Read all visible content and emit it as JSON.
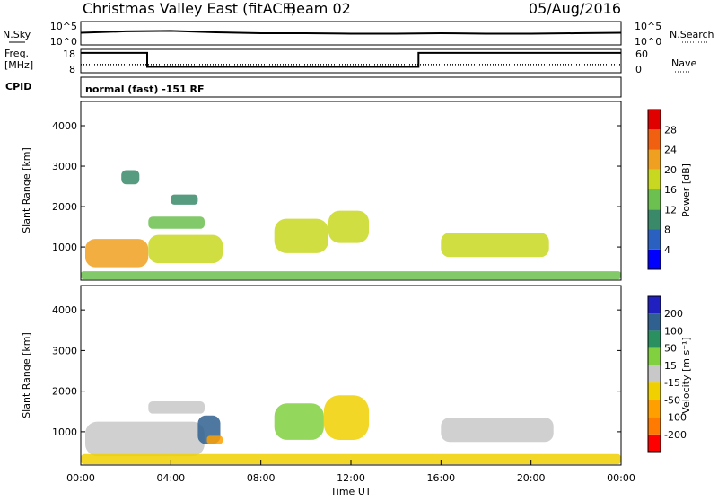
{
  "header": {
    "station": "Christmas Valley East (fitACF)",
    "beam": "Beam 02",
    "date": "05/Aug/2016"
  },
  "panels": {
    "nsky": {
      "label": "N.Sky",
      "left_ticks": [
        "10^5",
        "10^0"
      ],
      "right_ticks": [
        "10^5",
        "10^0"
      ],
      "right_label": "N.Search"
    },
    "freq": {
      "label_line1": "Freq.",
      "label_line2": "[MHz]",
      "left_ticks": [
        "18",
        "8"
      ],
      "right_ticks": [
        "60",
        "0"
      ],
      "right_label": "Nave"
    },
    "cpid": {
      "label": "CPID",
      "value": "normal (fast) -151 RF"
    }
  },
  "axes": {
    "x_ticks": [
      "00:00",
      "04:00",
      "08:00",
      "12:00",
      "16:00",
      "20:00",
      "00:00"
    ],
    "x_label": "Time UT",
    "y_label": "Slant Range [km]",
    "y_ticks": [
      "1000",
      "2000",
      "3000",
      "4000"
    ]
  },
  "colorbars": {
    "power": {
      "label": "Power [dB]",
      "ticks": [
        "4",
        "8",
        "12",
        "16",
        "20",
        "24",
        "28"
      ],
      "colors": [
        "#0000ff",
        "#2a60c0",
        "#3a8a6a",
        "#6cc050",
        "#c8d820",
        "#f0a020",
        "#f06010",
        "#e00000"
      ]
    },
    "velocity": {
      "label": "Velocity [m s⁻¹]",
      "ticks": [
        "-200",
        "-100",
        "-50",
        "-15",
        "15",
        "50",
        "100",
        "200"
      ],
      "colors": [
        "#ff0000",
        "#ff7a00",
        "#ffa000",
        "#f0d000",
        "#c8c8c8",
        "#80d040",
        "#2a9060",
        "#306090",
        "#2020c0"
      ]
    }
  },
  "chart_data": [
    {
      "type": "line",
      "title": "N.Sky / N.Search",
      "x": [
        0,
        2,
        4,
        6,
        8,
        10,
        12,
        14,
        16,
        18,
        20,
        22,
        24
      ],
      "series": [
        {
          "values": [
            2.6,
            2.9,
            3.0,
            2.7,
            2.5,
            2.5,
            2.4,
            2.4,
            2.5,
            2.4,
            2.4,
            2.5,
            2.6
          ]
        }
      ],
      "xlim": [
        0,
        24
      ]
    },
    {
      "type": "line",
      "title": "Frequency / Nave",
      "x": [
        0,
        2.95,
        2.95,
        15,
        15,
        24
      ],
      "series": [
        {
          "name": "Freq. [MHz]",
          "values": [
            16.5,
            16.5,
            10.5,
            10.5,
            16.5,
            16.5
          ]
        },
        {
          "name": "Nave",
          "values": [
            21,
            21,
            21,
            21,
            21,
            21
          ]
        }
      ],
      "xlim": [
        0,
        24
      ],
      "ylim": [
        8,
        18
      ]
    },
    {
      "type": "heatmap",
      "title": "Power [dB]",
      "xlabel": "Time UT",
      "ylabel": "Slant Range [km]",
      "xlim": [
        0,
        24
      ],
      "ylim": [
        180,
        4600
      ],
      "regions": [
        {
          "t": [
            0.2,
            3.0
          ],
          "r": [
            500,
            1200
          ],
          "level": 20
        },
        {
          "t": [
            3.0,
            6.3
          ],
          "r": [
            600,
            1300
          ],
          "level": 16
        },
        {
          "t": [
            3.0,
            5.5
          ],
          "r": [
            1450,
            1750
          ],
          "level": 12
        },
        {
          "t": [
            1.8,
            2.6
          ],
          "r": [
            2550,
            2900
          ],
          "level": 8
        },
        {
          "t": [
            4.0,
            5.2
          ],
          "r": [
            2050,
            2300
          ],
          "level": 8
        },
        {
          "t": [
            8.6,
            11.0
          ],
          "r": [
            850,
            1700
          ],
          "level": 18
        },
        {
          "t": [
            11.0,
            12.8
          ],
          "r": [
            1100,
            1900
          ],
          "level": 16
        },
        {
          "t": [
            16.0,
            20.8
          ],
          "r": [
            750,
            1350
          ],
          "level": 16
        },
        {
          "t": [
            0,
            24
          ],
          "r": [
            200,
            400
          ],
          "level": 14
        }
      ]
    },
    {
      "type": "heatmap",
      "title": "Velocity [m/s]",
      "xlabel": "Time UT",
      "ylabel": "Slant Range [km]",
      "xlim": [
        0,
        24
      ],
      "ylim": [
        180,
        4600
      ],
      "regions": [
        {
          "t": [
            0.2,
            5.5
          ],
          "r": [
            400,
            1250
          ],
          "level": 0
        },
        {
          "t": [
            3.0,
            5.5
          ],
          "r": [
            1450,
            1750
          ],
          "level": 0
        },
        {
          "t": [
            5.2,
            6.2
          ],
          "r": [
            700,
            1400
          ],
          "level": 110
        },
        {
          "t": [
            5.6,
            6.3
          ],
          "r": [
            700,
            900
          ],
          "level": -60
        },
        {
          "t": [
            8.6,
            10.8
          ],
          "r": [
            800,
            1700
          ],
          "level": 40
        },
        {
          "t": [
            10.8,
            12.8
          ],
          "r": [
            800,
            1900
          ],
          "level": -40
        },
        {
          "t": [
            16.0,
            21.0
          ],
          "r": [
            750,
            1350
          ],
          "level": 0
        },
        {
          "t": [
            0,
            24
          ],
          "r": [
            200,
            450
          ],
          "level": -30
        }
      ]
    }
  ]
}
